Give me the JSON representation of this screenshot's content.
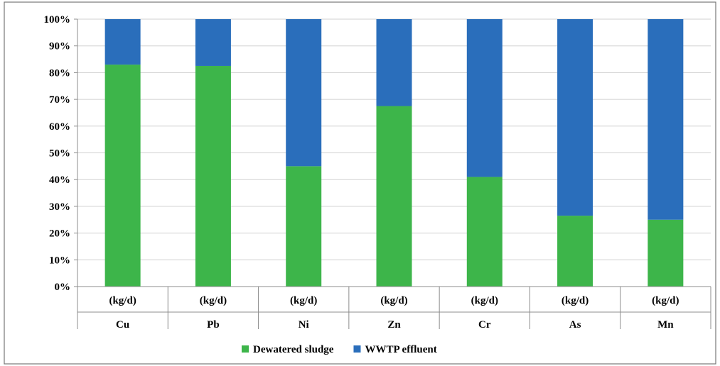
{
  "chart_data": {
    "type": "bar",
    "stacked": true,
    "categories": [
      "Cu",
      "Pb",
      "Ni",
      "Zn",
      "Cr",
      "As",
      "Mn"
    ],
    "unit_label": "(kg/d)",
    "series": [
      {
        "name": "Dewatered sludge",
        "color": "#3db54a",
        "values": [
          83,
          82.5,
          45,
          67.5,
          41,
          26.5,
          25
        ]
      },
      {
        "name": "WWTP effluent",
        "color": "#2a6ebb",
        "values": [
          17,
          17.5,
          55,
          32.5,
          59,
          73.5,
          75
        ]
      }
    ],
    "yticks": [
      "0%",
      "10%",
      "20%",
      "30%",
      "40%",
      "50%",
      "60%",
      "70%",
      "80%",
      "90%",
      "100%"
    ],
    "ylim": [
      0,
      100
    ],
    "grid": "horizontal",
    "legend_position": "bottom"
  }
}
